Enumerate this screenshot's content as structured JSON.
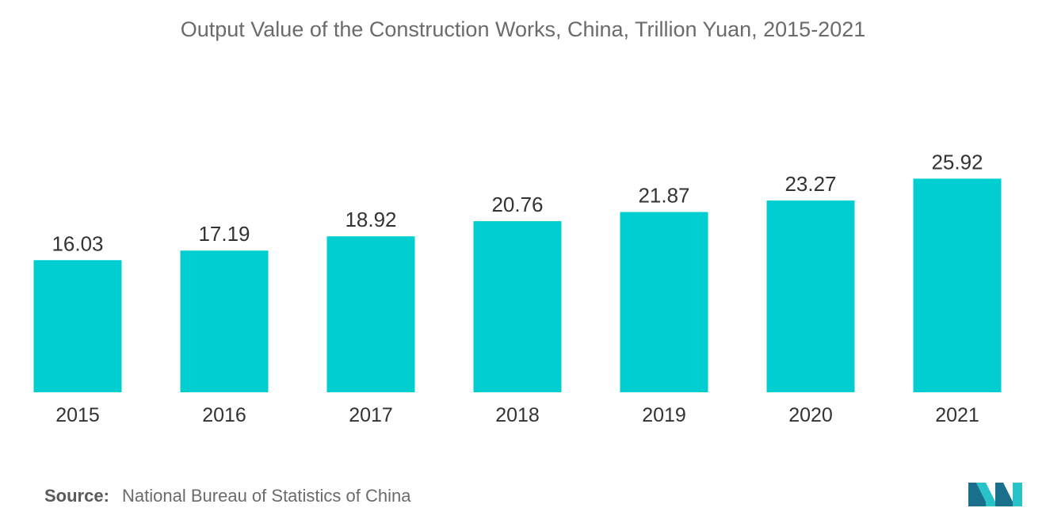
{
  "chart_data": {
    "type": "bar",
    "title": "Output Value of the Construction Works, China, Trillion Yuan, 2015-2021",
    "categories": [
      "2015",
      "2016",
      "2017",
      "2018",
      "2019",
      "2020",
      "2021"
    ],
    "values": [
      16.03,
      17.19,
      18.92,
      20.76,
      21.87,
      23.27,
      25.92
    ],
    "data_labels": [
      "16.03",
      "17.19",
      "18.92",
      "20.76",
      "21.87",
      "23.27",
      "25.92"
    ],
    "xlabel": "",
    "ylabel": "",
    "grid": false,
    "legend": "none",
    "bar_color": "#00ced1"
  },
  "footer": {
    "source_label": "Source:",
    "source_text": "National Bureau of Statistics of China"
  },
  "colors": {
    "bar": "#00ced1",
    "title_text": "#6b6b6b",
    "label_text": "#333333",
    "logo_dark": "#1a6f8c",
    "logo_light": "#27c3c9"
  },
  "logo": {
    "icon": "market-logo-icon"
  }
}
